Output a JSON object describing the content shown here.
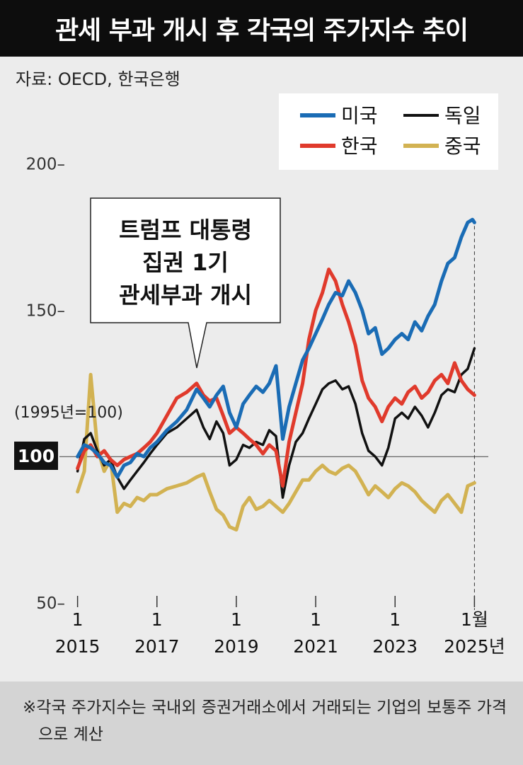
{
  "title": "관세 부과 개시 후 각국의 주가지수 추이",
  "source": "자료: OECD, 한국은행",
  "footnote": "※각국 주가지수는 국내외 증권거래소에서 거래되는 기업의 보통주 가격으로 계산",
  "annotation": [
    "트럼프 대통령",
    "집권 1기",
    "관세부과 개시"
  ],
  "chart_data": {
    "type": "line",
    "base_note": "(1995년=100)",
    "baseline_label": "100",
    "ylim": [
      50,
      205
    ],
    "y_ticks": [
      {
        "value": 200,
        "label": "200–"
      },
      {
        "value": 150,
        "label": "150–"
      },
      {
        "value": 50,
        "label": "50–"
      }
    ],
    "x_ticks": [
      {
        "x": 2015,
        "month": "1",
        "year": "2015"
      },
      {
        "x": 2017,
        "month": "1",
        "year": "2017"
      },
      {
        "x": 2019,
        "month": "1",
        "year": "2019"
      },
      {
        "x": 2021,
        "month": "1",
        "year": "2021"
      },
      {
        "x": 2023,
        "month": "1",
        "year": "2023"
      },
      {
        "x": 2025,
        "month": "1월",
        "year": "2025년"
      }
    ],
    "xlim": [
      2014.9,
      2025.1
    ],
    "legend_position": "top-right",
    "series": [
      {
        "name": "미국",
        "color": "#1a6cb5",
        "points": [
          [
            2015.0,
            100
          ],
          [
            2015.17,
            104
          ],
          [
            2015.33,
            103
          ],
          [
            2015.5,
            101
          ],
          [
            2015.67,
            98
          ],
          [
            2015.83,
            97
          ],
          [
            2016.0,
            93
          ],
          [
            2016.17,
            97
          ],
          [
            2016.33,
            98
          ],
          [
            2016.5,
            101
          ],
          [
            2016.67,
            100
          ],
          [
            2016.83,
            103
          ],
          [
            2017.0,
            105
          ],
          [
            2017.25,
            109
          ],
          [
            2017.5,
            112
          ],
          [
            2017.75,
            116
          ],
          [
            2018.0,
            123
          ],
          [
            2018.17,
            120
          ],
          [
            2018.33,
            117
          ],
          [
            2018.5,
            121
          ],
          [
            2018.67,
            124
          ],
          [
            2018.83,
            115
          ],
          [
            2019.0,
            110
          ],
          [
            2019.17,
            118
          ],
          [
            2019.33,
            121
          ],
          [
            2019.5,
            124
          ],
          [
            2019.67,
            122
          ],
          [
            2019.83,
            125
          ],
          [
            2020.0,
            131
          ],
          [
            2020.17,
            106
          ],
          [
            2020.33,
            117
          ],
          [
            2020.5,
            125
          ],
          [
            2020.67,
            133
          ],
          [
            2020.83,
            137
          ],
          [
            2021.0,
            142
          ],
          [
            2021.17,
            147
          ],
          [
            2021.33,
            152
          ],
          [
            2021.5,
            156
          ],
          [
            2021.67,
            155
          ],
          [
            2021.83,
            160
          ],
          [
            2022.0,
            156
          ],
          [
            2022.17,
            150
          ],
          [
            2022.33,
            142
          ],
          [
            2022.5,
            144
          ],
          [
            2022.67,
            135
          ],
          [
            2022.83,
            137
          ],
          [
            2023.0,
            140
          ],
          [
            2023.17,
            142
          ],
          [
            2023.33,
            140
          ],
          [
            2023.5,
            146
          ],
          [
            2023.67,
            143
          ],
          [
            2023.83,
            148
          ],
          [
            2024.0,
            152
          ],
          [
            2024.17,
            160
          ],
          [
            2024.33,
            166
          ],
          [
            2024.5,
            168
          ],
          [
            2024.67,
            175
          ],
          [
            2024.83,
            180
          ],
          [
            2024.95,
            181
          ],
          [
            2025.0,
            180
          ]
        ]
      },
      {
        "name": "한국",
        "color": "#e03a2c",
        "points": [
          [
            2015.0,
            96
          ],
          [
            2015.17,
            102
          ],
          [
            2015.33,
            104
          ],
          [
            2015.5,
            100
          ],
          [
            2015.67,
            102
          ],
          [
            2015.83,
            99
          ],
          [
            2016.0,
            97
          ],
          [
            2016.17,
            99
          ],
          [
            2016.33,
            100
          ],
          [
            2016.5,
            101
          ],
          [
            2016.67,
            103
          ],
          [
            2016.83,
            105
          ],
          [
            2017.0,
            108
          ],
          [
            2017.25,
            114
          ],
          [
            2017.5,
            120
          ],
          [
            2017.75,
            122
          ],
          [
            2018.0,
            125
          ],
          [
            2018.17,
            121
          ],
          [
            2018.33,
            119
          ],
          [
            2018.5,
            120
          ],
          [
            2018.67,
            114
          ],
          [
            2018.83,
            108
          ],
          [
            2019.0,
            110
          ],
          [
            2019.17,
            108
          ],
          [
            2019.33,
            106
          ],
          [
            2019.5,
            104
          ],
          [
            2019.67,
            101
          ],
          [
            2019.83,
            104
          ],
          [
            2020.0,
            102
          ],
          [
            2020.17,
            90
          ],
          [
            2020.33,
            105
          ],
          [
            2020.5,
            115
          ],
          [
            2020.67,
            125
          ],
          [
            2020.83,
            140
          ],
          [
            2021.0,
            150
          ],
          [
            2021.17,
            156
          ],
          [
            2021.33,
            164
          ],
          [
            2021.5,
            160
          ],
          [
            2021.67,
            152
          ],
          [
            2021.83,
            146
          ],
          [
            2022.0,
            138
          ],
          [
            2022.17,
            126
          ],
          [
            2022.33,
            120
          ],
          [
            2022.5,
            117
          ],
          [
            2022.67,
            112
          ],
          [
            2022.83,
            117
          ],
          [
            2023.0,
            120
          ],
          [
            2023.17,
            118
          ],
          [
            2023.33,
            122
          ],
          [
            2023.5,
            124
          ],
          [
            2023.67,
            120
          ],
          [
            2023.83,
            122
          ],
          [
            2024.0,
            126
          ],
          [
            2024.17,
            128
          ],
          [
            2024.33,
            125
          ],
          [
            2024.5,
            132
          ],
          [
            2024.67,
            126
          ],
          [
            2024.83,
            123
          ],
          [
            2025.0,
            121
          ]
        ]
      },
      {
        "name": "독일",
        "color": "#111111",
        "points": [
          [
            2015.0,
            95
          ],
          [
            2015.17,
            106
          ],
          [
            2015.33,
            108
          ],
          [
            2015.5,
            102
          ],
          [
            2015.67,
            97
          ],
          [
            2015.83,
            99
          ],
          [
            2016.0,
            93
          ],
          [
            2016.17,
            89
          ],
          [
            2016.33,
            92
          ],
          [
            2016.5,
            95
          ],
          [
            2016.67,
            98
          ],
          [
            2016.83,
            101
          ],
          [
            2017.0,
            104
          ],
          [
            2017.25,
            108
          ],
          [
            2017.5,
            110
          ],
          [
            2017.75,
            113
          ],
          [
            2018.0,
            116
          ],
          [
            2018.17,
            110
          ],
          [
            2018.33,
            106
          ],
          [
            2018.5,
            112
          ],
          [
            2018.67,
            108
          ],
          [
            2018.83,
            97
          ],
          [
            2019.0,
            99
          ],
          [
            2019.17,
            104
          ],
          [
            2019.33,
            103
          ],
          [
            2019.5,
            105
          ],
          [
            2019.67,
            104
          ],
          [
            2019.83,
            109
          ],
          [
            2020.0,
            107
          ],
          [
            2020.17,
            86
          ],
          [
            2020.33,
            97
          ],
          [
            2020.5,
            105
          ],
          [
            2020.67,
            108
          ],
          [
            2020.83,
            113
          ],
          [
            2021.0,
            118
          ],
          [
            2021.17,
            123
          ],
          [
            2021.33,
            125
          ],
          [
            2021.5,
            126
          ],
          [
            2021.67,
            123
          ],
          [
            2021.83,
            124
          ],
          [
            2022.0,
            118
          ],
          [
            2022.17,
            108
          ],
          [
            2022.33,
            102
          ],
          [
            2022.5,
            100
          ],
          [
            2022.67,
            97
          ],
          [
            2022.83,
            103
          ],
          [
            2023.0,
            113
          ],
          [
            2023.17,
            115
          ],
          [
            2023.33,
            113
          ],
          [
            2023.5,
            117
          ],
          [
            2023.67,
            114
          ],
          [
            2023.83,
            110
          ],
          [
            2024.0,
            115
          ],
          [
            2024.17,
            121
          ],
          [
            2024.33,
            123
          ],
          [
            2024.5,
            122
          ],
          [
            2024.67,
            128
          ],
          [
            2024.83,
            130
          ],
          [
            2025.0,
            137
          ]
        ]
      },
      {
        "name": "중국",
        "color": "#d2b252",
        "points": [
          [
            2015.0,
            88
          ],
          [
            2015.17,
            95
          ],
          [
            2015.33,
            128
          ],
          [
            2015.5,
            103
          ],
          [
            2015.67,
            95
          ],
          [
            2015.83,
            99
          ],
          [
            2016.0,
            81
          ],
          [
            2016.17,
            84
          ],
          [
            2016.33,
            83
          ],
          [
            2016.5,
            86
          ],
          [
            2016.67,
            85
          ],
          [
            2016.83,
            87
          ],
          [
            2017.0,
            87
          ],
          [
            2017.25,
            89
          ],
          [
            2017.5,
            90
          ],
          [
            2017.75,
            91
          ],
          [
            2018.0,
            93
          ],
          [
            2018.17,
            94
          ],
          [
            2018.33,
            88
          ],
          [
            2018.5,
            82
          ],
          [
            2018.67,
            80
          ],
          [
            2018.83,
            76
          ],
          [
            2019.0,
            75
          ],
          [
            2019.17,
            83
          ],
          [
            2019.33,
            86
          ],
          [
            2019.5,
            82
          ],
          [
            2019.67,
            83
          ],
          [
            2019.83,
            85
          ],
          [
            2020.0,
            83
          ],
          [
            2020.17,
            81
          ],
          [
            2020.33,
            84
          ],
          [
            2020.5,
            88
          ],
          [
            2020.67,
            92
          ],
          [
            2020.83,
            92
          ],
          [
            2021.0,
            95
          ],
          [
            2021.17,
            97
          ],
          [
            2021.33,
            95
          ],
          [
            2021.5,
            94
          ],
          [
            2021.67,
            96
          ],
          [
            2021.83,
            97
          ],
          [
            2022.0,
            95
          ],
          [
            2022.17,
            91
          ],
          [
            2022.33,
            87
          ],
          [
            2022.5,
            90
          ],
          [
            2022.67,
            88
          ],
          [
            2022.83,
            86
          ],
          [
            2023.0,
            89
          ],
          [
            2023.17,
            91
          ],
          [
            2023.33,
            90
          ],
          [
            2023.5,
            88
          ],
          [
            2023.67,
            85
          ],
          [
            2023.83,
            83
          ],
          [
            2024.0,
            81
          ],
          [
            2024.17,
            85
          ],
          [
            2024.33,
            87
          ],
          [
            2024.5,
            84
          ],
          [
            2024.67,
            81
          ],
          [
            2024.83,
            90
          ],
          [
            2025.0,
            91
          ]
        ]
      }
    ]
  }
}
